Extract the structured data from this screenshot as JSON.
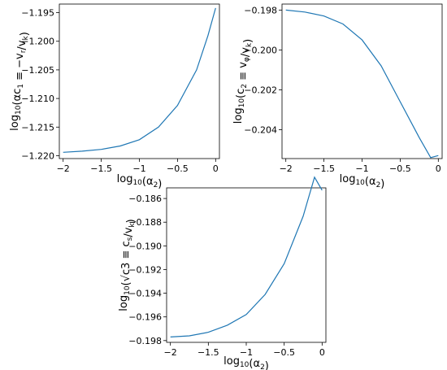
{
  "chart_data": [
    {
      "type": "line",
      "xlabel": "log10(α2)",
      "ylabel": "log10(αc1 ≡ −vr/vk)",
      "xlim": [
        -2.05,
        0.05
      ],
      "ylim": [
        -1.2205,
        -1.1935
      ],
      "xticks": [
        -2,
        -1.5,
        -1,
        -0.5,
        0
      ],
      "xtick_labels": [
        "−2",
        "−1.5",
        "−1",
        "−0.5",
        "0"
      ],
      "yticks": [
        -1.22,
        -1.215,
        -1.21,
        -1.205,
        -1.2,
        -1.195
      ],
      "ytick_labels": [
        "−1.220",
        "−1.215",
        "−1.210",
        "−1.205",
        "−1.200",
        "−1.195"
      ],
      "grid": false,
      "series": [
        {
          "color": "#1f77b4",
          "x": [
            -2.0,
            -1.75,
            -1.5,
            -1.25,
            -1.0,
            -0.75,
            -0.5,
            -0.25,
            -0.1,
            0.0
          ],
          "y": [
            -1.2194,
            -1.2192,
            -1.2189,
            -1.2183,
            -1.2172,
            -1.215,
            -1.2112,
            -1.205,
            -1.199,
            -1.1942
          ]
        }
      ]
    },
    {
      "type": "line",
      "xlabel": "log10(α2)",
      "ylabel": "log10(c2 ≡ vφ/vk)",
      "xlim": [
        -2.05,
        0.05
      ],
      "ylim": [
        -0.20545,
        -0.1977
      ],
      "xticks": [
        -2,
        -1.5,
        -1,
        -0.5,
        0
      ],
      "xtick_labels": [
        "−2",
        "−1.5",
        "−1",
        "−0.5",
        "0"
      ],
      "yticks": [
        -0.198,
        -0.2,
        -0.202,
        -0.204
      ],
      "ytick_labels": [
        "−0.198",
        "−0.200",
        "−0.202",
        "−0.204"
      ],
      "grid": false,
      "series": [
        {
          "color": "#1f77b4",
          "x": [
            -2.0,
            -1.75,
            -1.5,
            -1.25,
            -1.0,
            -0.75,
            -0.5,
            -0.25,
            -0.1,
            0.0
          ],
          "y": [
            -0.198,
            -0.1981,
            -0.1983,
            -0.1987,
            -0.1995,
            -0.2008,
            -0.2026,
            -0.2044,
            -0.2054,
            -0.2053
          ]
        }
      ]
    },
    {
      "type": "line",
      "xlabel": "log10(α2)",
      "ylabel": "log10(√c3 ≡ cs/vk)",
      "xlim": [
        -2.05,
        0.05
      ],
      "ylim": [
        -0.19815,
        -0.1851
      ],
      "xticks": [
        -2,
        -1.5,
        -1,
        -0.5,
        0
      ],
      "xtick_labels": [
        "−2",
        "−1.5",
        "−1",
        "−0.5",
        "0"
      ],
      "yticks": [
        -0.186,
        -0.188,
        -0.19,
        -0.192,
        -0.194,
        -0.196,
        -0.198
      ],
      "ytick_labels": [
        "−0.186",
        "−0.188",
        "−0.190",
        "−0.192",
        "−0.194",
        "−0.196",
        "−0.198"
      ],
      "grid": false,
      "series": [
        {
          "color": "#1f77b4",
          "x": [
            -2.0,
            -1.75,
            -1.5,
            -1.25,
            -1.0,
            -0.75,
            -0.5,
            -0.25,
            -0.1,
            0.0
          ],
          "y": [
            -0.1977,
            -0.1976,
            -0.1973,
            -0.1967,
            -0.1958,
            -0.1941,
            -0.1915,
            -0.1875,
            -0.1842,
            -0.1853
          ]
        }
      ]
    }
  ]
}
